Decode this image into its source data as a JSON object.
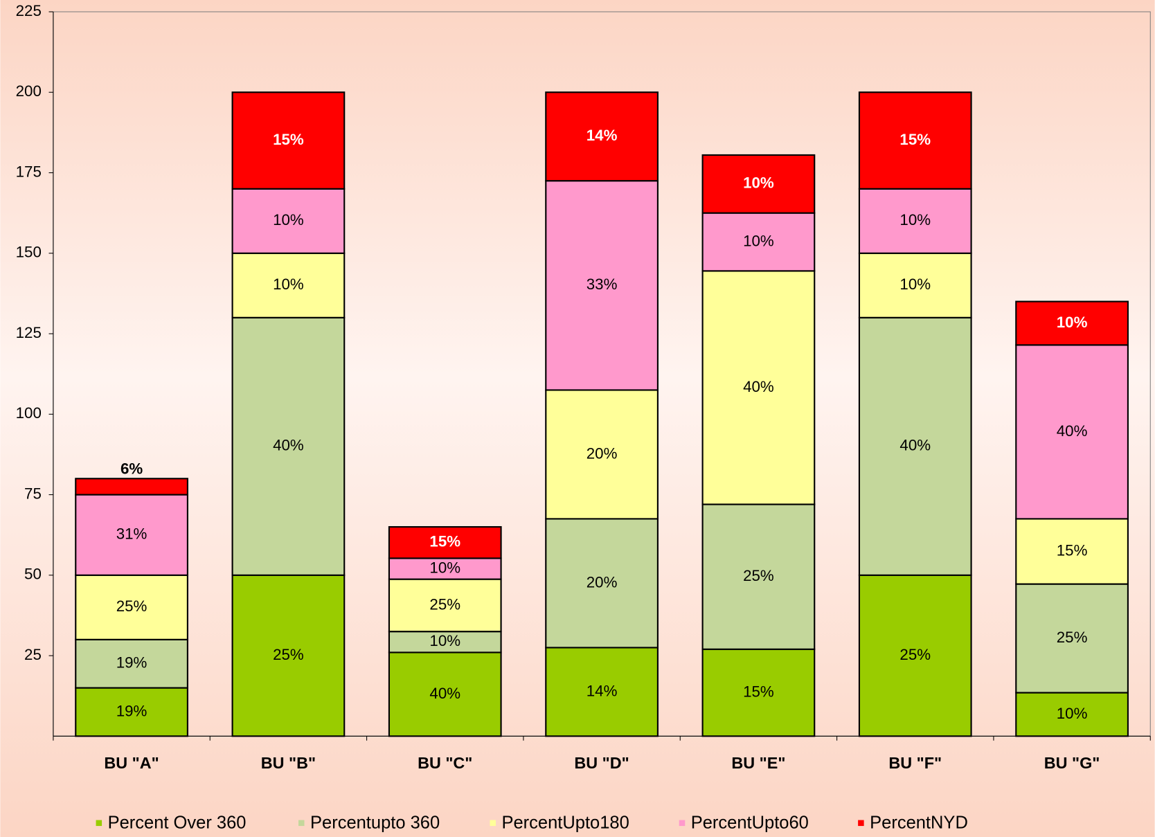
{
  "chart_data": {
    "type": "stacked_bar",
    "categories": [
      "BU \"A\"",
      "BU \"B\"",
      "BU \"C\"",
      "BU \"D\"",
      "BU \"E\"",
      "BU \"F\"",
      "BU \"G\""
    ],
    "series": [
      {
        "name": "Percent Over 360",
        "color": "#99cc00",
        "values": [
          15,
          50,
          26,
          27.5,
          27,
          50,
          13.5
        ],
        "value_labels": [
          "19%",
          "25%",
          "40%",
          "14%",
          "15%",
          "25%",
          "10%"
        ]
      },
      {
        "name": "Percentupto 360",
        "color": "#c4d79b",
        "values": [
          15,
          80,
          6.5,
          40,
          45,
          80,
          33.75
        ],
        "value_labels": [
          "19%",
          "40%",
          "10%",
          "20%",
          "25%",
          "40%",
          "25%"
        ]
      },
      {
        "name": "PercentUpto180",
        "color": "#ffff99",
        "values": [
          20,
          20,
          16.25,
          40,
          72.5,
          20,
          20.25
        ],
        "value_labels": [
          "25%",
          "10%",
          "25%",
          "20%",
          "40%",
          "10%",
          "15%"
        ]
      },
      {
        "name": "PercentUpto60",
        "color": "#ff99cc",
        "values": [
          25,
          20,
          6.5,
          65,
          18,
          20,
          54
        ],
        "value_labels": [
          "31%",
          "10%",
          "10%",
          "33%",
          "10%",
          "10%",
          "40%"
        ]
      },
      {
        "name": "PercentNYD",
        "color": "#ff0000",
        "values": [
          5,
          30,
          9.75,
          27.5,
          18,
          30,
          13.5
        ],
        "value_labels": [
          "6%",
          "15%",
          "15%",
          "14%",
          "10%",
          "15%",
          "10%"
        ]
      }
    ],
    "ylim": [
      0,
      225
    ],
    "yticks": [
      25,
      50,
      75,
      100,
      125,
      150,
      175,
      200,
      225
    ],
    "grid": false,
    "legend": "bottom"
  }
}
